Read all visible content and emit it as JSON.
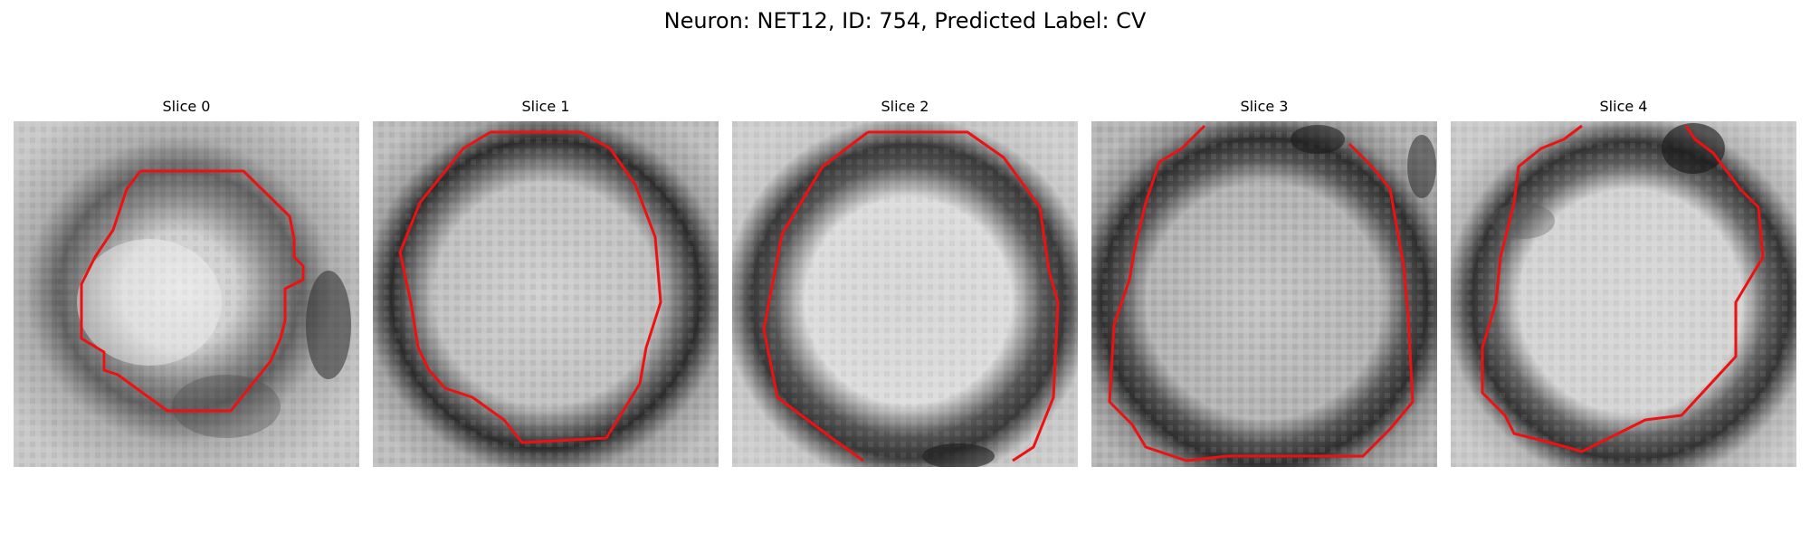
{
  "title": "Neuron: NET12, ID: 754, Predicted Label: CV",
  "contour_color": "#ee1111",
  "colormap": "grayscale",
  "panels": [
    {
      "title": "Slice 0"
    },
    {
      "title": "Slice 1"
    },
    {
      "title": "Slice 2"
    },
    {
      "title": "Slice 3"
    },
    {
      "title": "Slice 4"
    }
  ]
}
